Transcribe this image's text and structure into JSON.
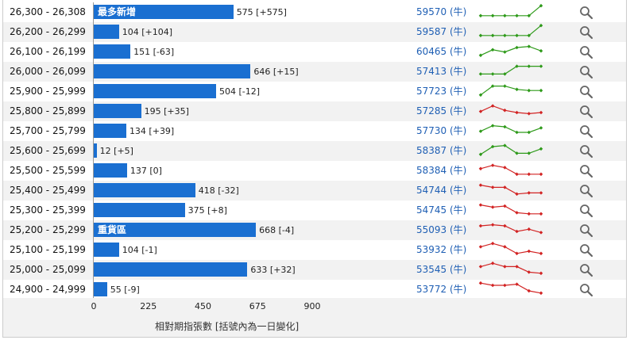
{
  "rows": [
    {
      "range": "26,300 - 26,308",
      "value": 575,
      "label": "575 [+575]",
      "tag": "最多新增",
      "oi": "59570 (牛)",
      "spark": [
        3,
        3,
        3,
        3,
        3,
        12
      ],
      "trend": "green"
    },
    {
      "range": "26,200 - 26,299",
      "value": 104,
      "label": "104 [+104]",
      "tag": "",
      "oi": "59587 (牛)",
      "spark": [
        3,
        3,
        3,
        3,
        3,
        12
      ],
      "trend": "green"
    },
    {
      "range": "26,100 - 26,199",
      "value": 151,
      "label": "151 [-63]",
      "tag": "",
      "oi": "60465 (牛)",
      "spark": [
        3,
        8,
        6,
        10,
        11,
        7
      ],
      "trend": "green"
    },
    {
      "range": "26,000 - 26,099",
      "value": 646,
      "label": "646 [+15]",
      "tag": "",
      "oi": "57413 (牛)",
      "spark": [
        4,
        4,
        4,
        11,
        11,
        11
      ],
      "trend": "green"
    },
    {
      "range": "25,900 - 25,999",
      "value": 504,
      "label": "504 [-12]",
      "tag": "",
      "oi": "57723 (牛)",
      "spark": [
        3,
        11,
        11,
        8,
        7,
        7
      ],
      "trend": "green"
    },
    {
      "range": "25,800 - 25,899",
      "value": 195,
      "label": "195 [+35]",
      "tag": "",
      "oi": "57285 (牛)",
      "spark": [
        6,
        11,
        7,
        5,
        4,
        5
      ],
      "trend": "red"
    },
    {
      "range": "25,700 - 25,799",
      "value": 134,
      "label": "134 [+39]",
      "tag": "",
      "oi": "57730 (牛)",
      "spark": [
        6,
        11,
        10,
        5,
        5,
        9
      ],
      "trend": "green"
    },
    {
      "range": "25,600 - 25,699",
      "value": 12,
      "label": "12 [+5]",
      "tag": "",
      "oi": "58387 (牛)",
      "spark": [
        3,
        10,
        11,
        4,
        4,
        8
      ],
      "trend": "green"
    },
    {
      "range": "25,500 - 25,599",
      "value": 137,
      "label": "137 [0]",
      "tag": "",
      "oi": "58384 (牛)",
      "spark": [
        8,
        11,
        9,
        3,
        3,
        3
      ],
      "trend": "red"
    },
    {
      "range": "25,400 - 25,499",
      "value": 418,
      "label": "418 [-32]",
      "tag": "",
      "oi": "54744 (牛)",
      "spark": [
        11,
        9,
        9,
        3,
        4,
        4
      ],
      "trend": "red"
    },
    {
      "range": "25,300 - 25,399",
      "value": 375,
      "label": "375 [+8]",
      "tag": "",
      "oi": "54745 (牛)",
      "spark": [
        11,
        9,
        10,
        4,
        3,
        3
      ],
      "trend": "red"
    },
    {
      "range": "25,200 - 25,299",
      "value": 668,
      "label": "668 [-4]",
      "tag": "重貨區",
      "oi": "55093 (牛)",
      "spark": [
        10,
        11,
        10,
        5,
        7,
        4
      ],
      "trend": "red"
    },
    {
      "range": "25,100 - 25,199",
      "value": 104,
      "label": "104 [-1]",
      "tag": "",
      "oi": "53932 (牛)",
      "spark": [
        9,
        12,
        9,
        3,
        5,
        3
      ],
      "trend": "red"
    },
    {
      "range": "25,000 - 25,099",
      "value": 633,
      "label": "633 [+32]",
      "tag": "",
      "oi": "53545 (牛)",
      "spark": [
        9,
        12,
        9,
        9,
        4,
        3
      ],
      "trend": "red"
    },
    {
      "range": "24,900 - 24,999",
      "value": 55,
      "label": "55 [-9]",
      "tag": "",
      "oi": "53772 (牛)",
      "spark": [
        12,
        10,
        10,
        11,
        5,
        3
      ],
      "trend": "red"
    }
  ],
  "axis": {
    "ticks": [
      "0",
      "225",
      "450",
      "675",
      "900"
    ],
    "max": 900,
    "title": "相對期指張數 [括號內為一日變化]"
  },
  "colors": {
    "bar": "#1a6fd1",
    "green": "#2e9a1a",
    "red": "#d22323",
    "oi": "#1f5fb4"
  },
  "icons": {
    "search": "search-icon"
  }
}
